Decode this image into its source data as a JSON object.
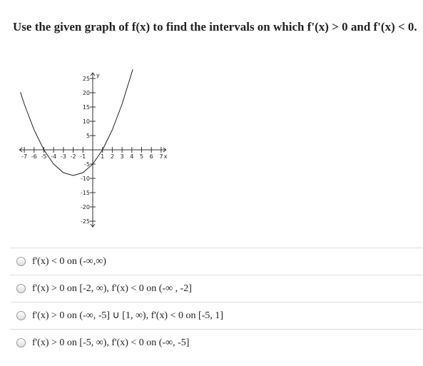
{
  "question": "Use the given graph of f(x) to find the intervals on which f'(x) > 0 and f'(x) < 0.",
  "graph": {
    "x_label": "x",
    "y_label": "y",
    "xlim": [
      -7.5,
      7.5
    ],
    "ylim": [
      -27,
      27
    ],
    "xticks": [
      -7,
      -6,
      -5,
      -4,
      -3,
      -2,
      -1,
      1,
      2,
      3,
      4,
      5,
      6,
      7
    ],
    "yticks": [
      25,
      20,
      15,
      10,
      5,
      -5,
      -10,
      -15,
      -20,
      -25
    ],
    "curve": {
      "x": [
        -7.4,
        -7,
        -6,
        -5,
        -4,
        -3,
        -2,
        -1,
        0,
        1,
        2,
        3,
        4.1
      ],
      "y": [
        20.2,
        16,
        7,
        0,
        -5,
        -8,
        -9,
        -8,
        -5,
        0,
        7,
        16,
        28.2
      ]
    }
  },
  "options": [
    "f'(x) < 0 on (-∞,∞)",
    "f'(x) > 0 on [-2, ∞), f'(x) < 0 on (-∞ , -2]",
    "f'(x) > 0 on (-∞, -5] ∪ [1, ∞), f'(x) < 0 on [-5, 1]",
    "f'(x) > 0 on [-5, ∞), f'(x) < 0 on (-∞, -5]"
  ]
}
